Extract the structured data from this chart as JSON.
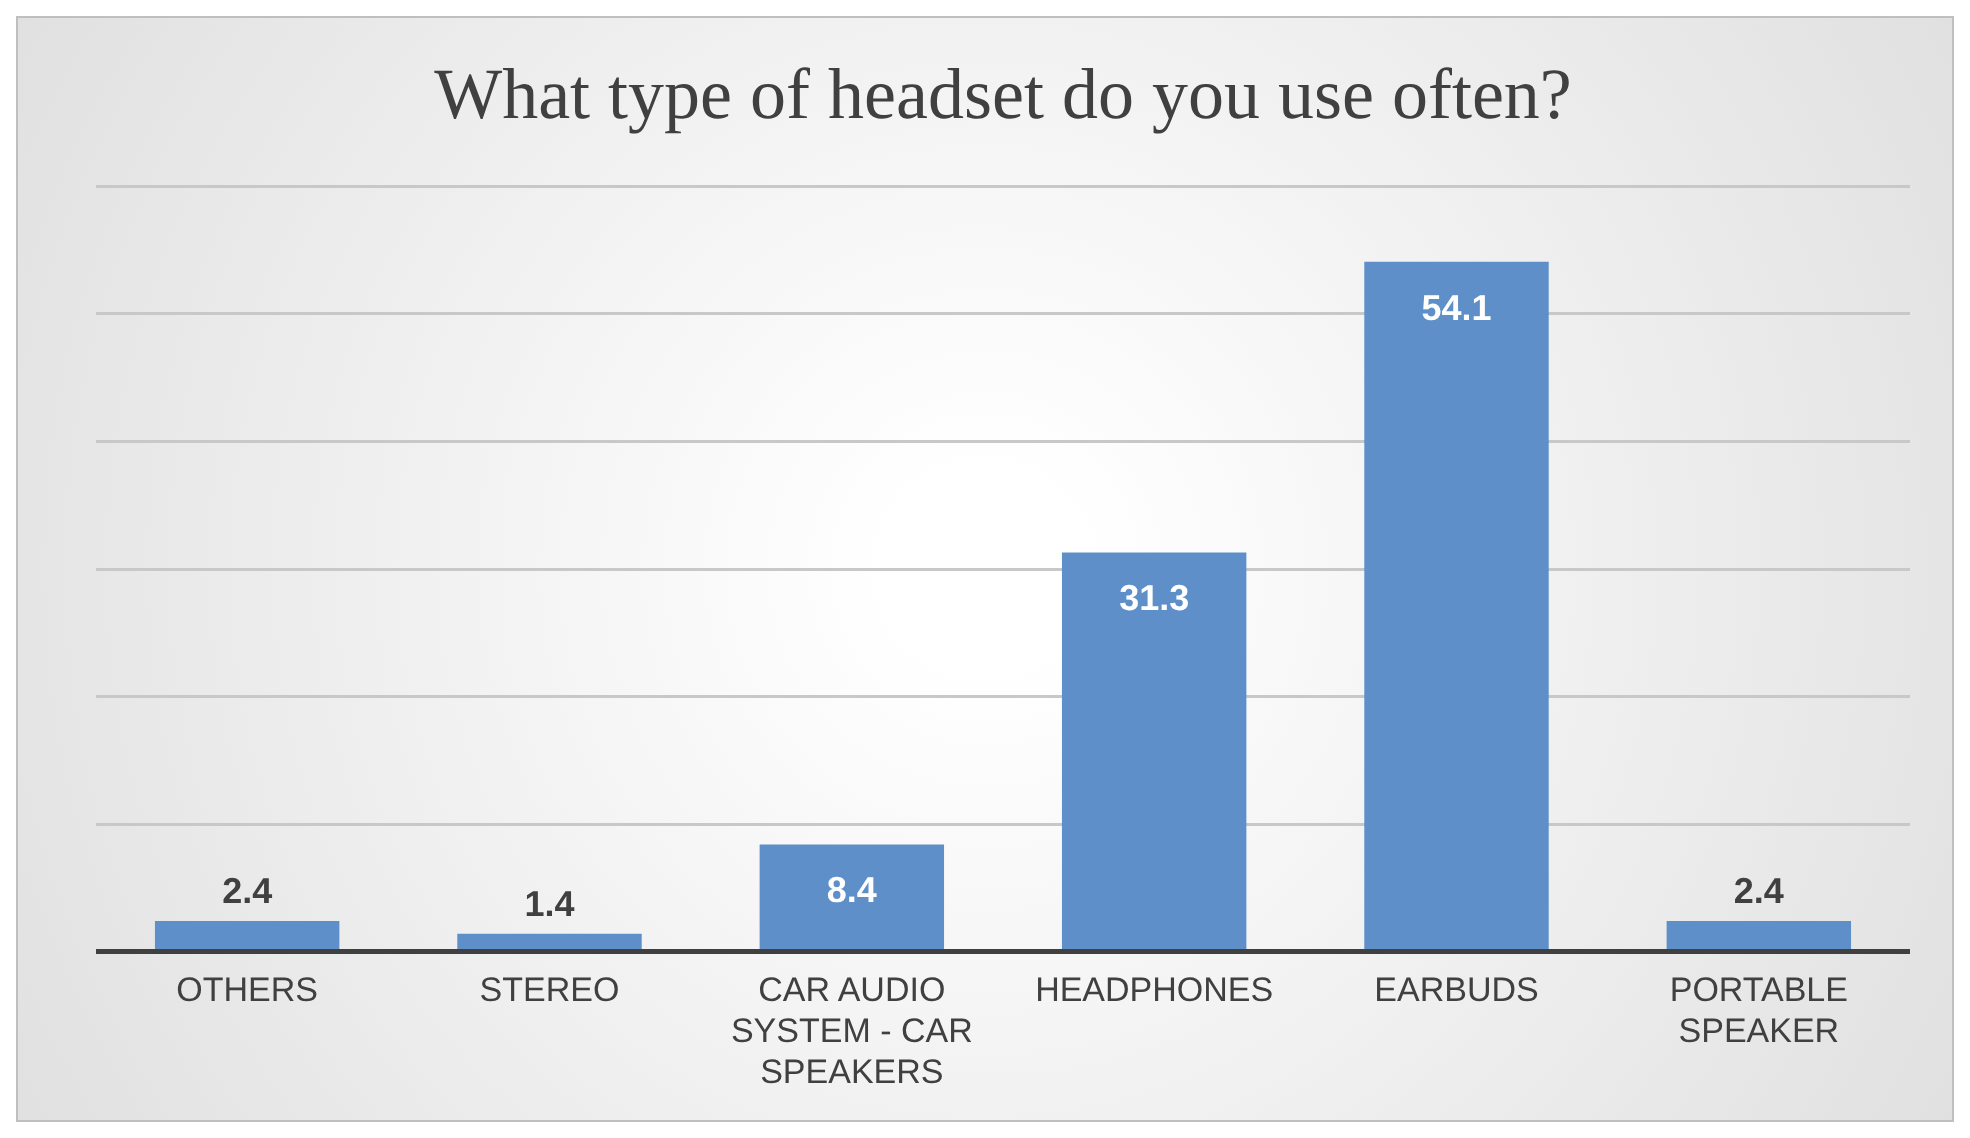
{
  "chart_data": {
    "type": "bar",
    "title": "What type of headset do you use often?",
    "categories": [
      "OTHERS",
      "STEREO",
      "CAR AUDIO SYSTEM - CAR SPEAKERS",
      "HEADPHONES",
      "EARBUDS",
      "PORTABLE SPEAKER"
    ],
    "values": [
      2.4,
      1.4,
      8.4,
      31.3,
      54.1,
      2.4
    ],
    "color": "#5f8fc8",
    "grid": "y",
    "tick_labels": "x",
    "data_labels": true,
    "legend": false
  }
}
